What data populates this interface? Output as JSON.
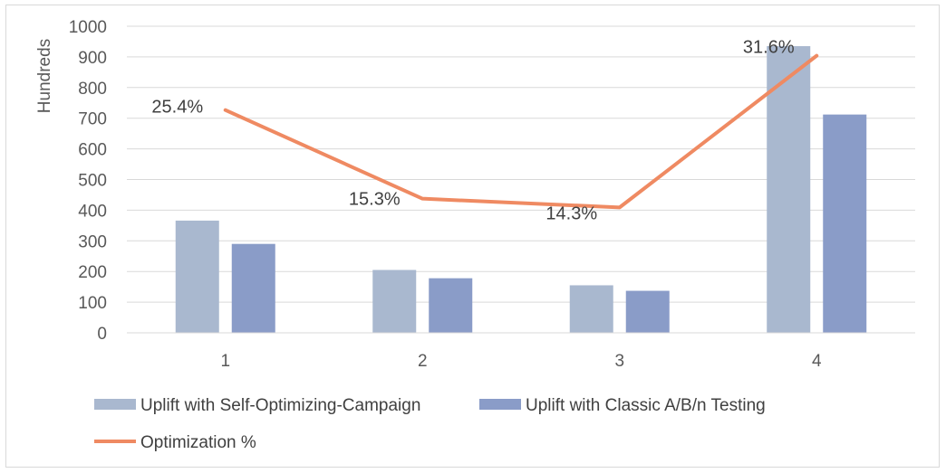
{
  "chart_data": {
    "type": "bar",
    "categories": [
      "1",
      "2",
      "3",
      "4"
    ],
    "ylabel": "Hundreds",
    "ylim": [
      0,
      1000
    ],
    "yticks": [
      "0",
      "100",
      "200",
      "300",
      "400",
      "500",
      "600",
      "700",
      "800",
      "900",
      "1000"
    ],
    "grid": true,
    "legend_position": "bottom",
    "series": [
      {
        "name": "Uplift with Self-Optimizing-Campaign",
        "type": "bar",
        "color": "#a9b8cf",
        "values": [
          366,
          205,
          155,
          935
        ]
      },
      {
        "name": "Uplift with Classic A/B/n Testing",
        "type": "bar",
        "color": "#8a9cc8",
        "values": [
          290,
          178,
          137,
          712
        ]
      },
      {
        "name": "Optimization %",
        "type": "line",
        "color": "#ef8a62",
        "values": [
          25.4,
          15.3,
          14.3,
          31.6
        ],
        "labels": [
          "25.4%",
          "15.3%",
          "14.3%",
          "31.6%"
        ]
      }
    ]
  }
}
